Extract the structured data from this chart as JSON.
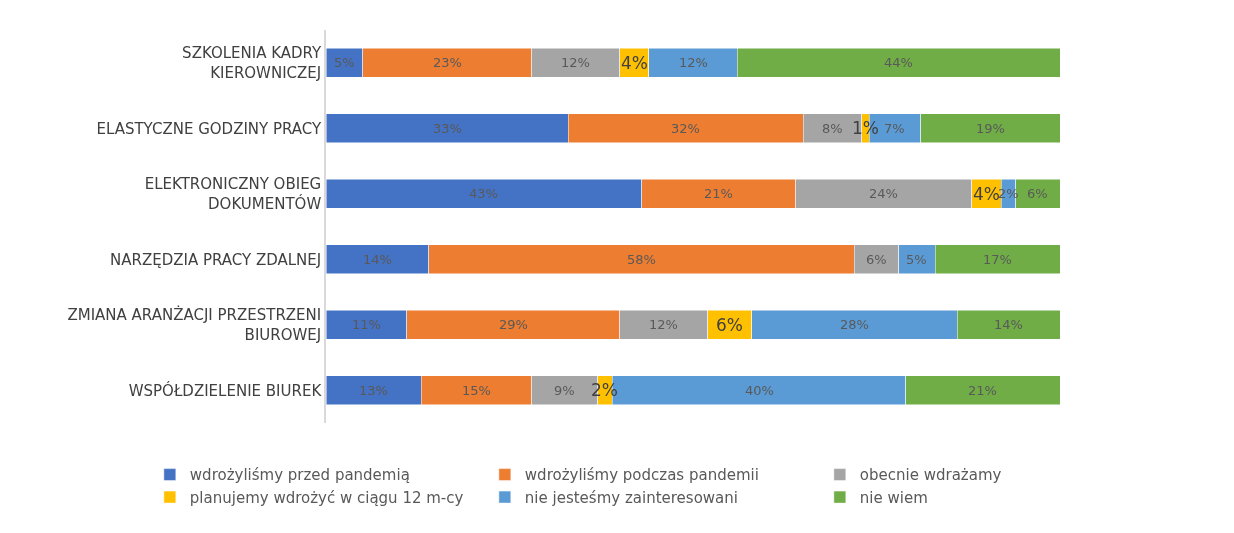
{
  "chart_data": {
    "type": "bar",
    "orientation": "horizontal",
    "stacked": true,
    "categories": [
      "SZKOLENIA KADRY\nKIEROWNICZEJ",
      "ELASTYCZNE GODZINY PRACY",
      "ELEKTRONICZNY OBIEG\nDOKUMENTÓW",
      "NARZĘDZIA PRACY ZDALNEJ",
      "ZMIANA ARANŻACJI PRZESTRZENI\nBIUROWEJ",
      "WSPÓŁDZIELENIE BIUREK"
    ],
    "xlim": [
      0,
      100
    ],
    "tick_labels": "y",
    "legend": "bottom",
    "series": [
      {
        "name": "wdrożyliśmy przed pandemią",
        "color": "#4472c4",
        "values": [
          5,
          33,
          43,
          14,
          11,
          13
        ],
        "value_labels": [
          "5%",
          "33%",
          "43%",
          "14%",
          "11%",
          "13%"
        ]
      },
      {
        "name": "wdrożyliśmy podczas pandemii",
        "color": "#ed7d31",
        "values": [
          23,
          32,
          21,
          58,
          29,
          15
        ],
        "value_labels": [
          "23%",
          "32%",
          "21%",
          "58%",
          "29%",
          "15%"
        ]
      },
      {
        "name": "obecnie wdrażamy",
        "color": "#a5a5a5",
        "values": [
          12,
          8,
          24,
          6,
          12,
          9
        ],
        "value_labels": [
          "12%",
          "8%",
          "24%",
          "6%",
          "12%",
          "9%"
        ]
      },
      {
        "name": "planujemy wdrożyć w ciągu 12 m-cy",
        "color": "#ffc000",
        "values": [
          4,
          1,
          4,
          null,
          6,
          2
        ],
        "value_labels": [
          "4%",
          "1%",
          "4%",
          null,
          "6%",
          "2%"
        ]
      },
      {
        "name": "nie jesteśmy zainteresowani",
        "color": "#5b9bd5",
        "values": [
          12,
          7,
          2,
          5,
          28,
          40
        ],
        "value_labels": [
          "12%",
          "7%",
          "2%",
          "5%",
          "28%",
          "40%"
        ]
      },
      {
        "name": "nie wiem",
        "color": "#70ad47",
        "values": [
          44,
          19,
          6,
          17,
          14,
          21
        ],
        "value_labels": [
          "44%",
          "19%",
          "6%",
          "17%",
          "14%",
          "21%"
        ]
      }
    ]
  }
}
